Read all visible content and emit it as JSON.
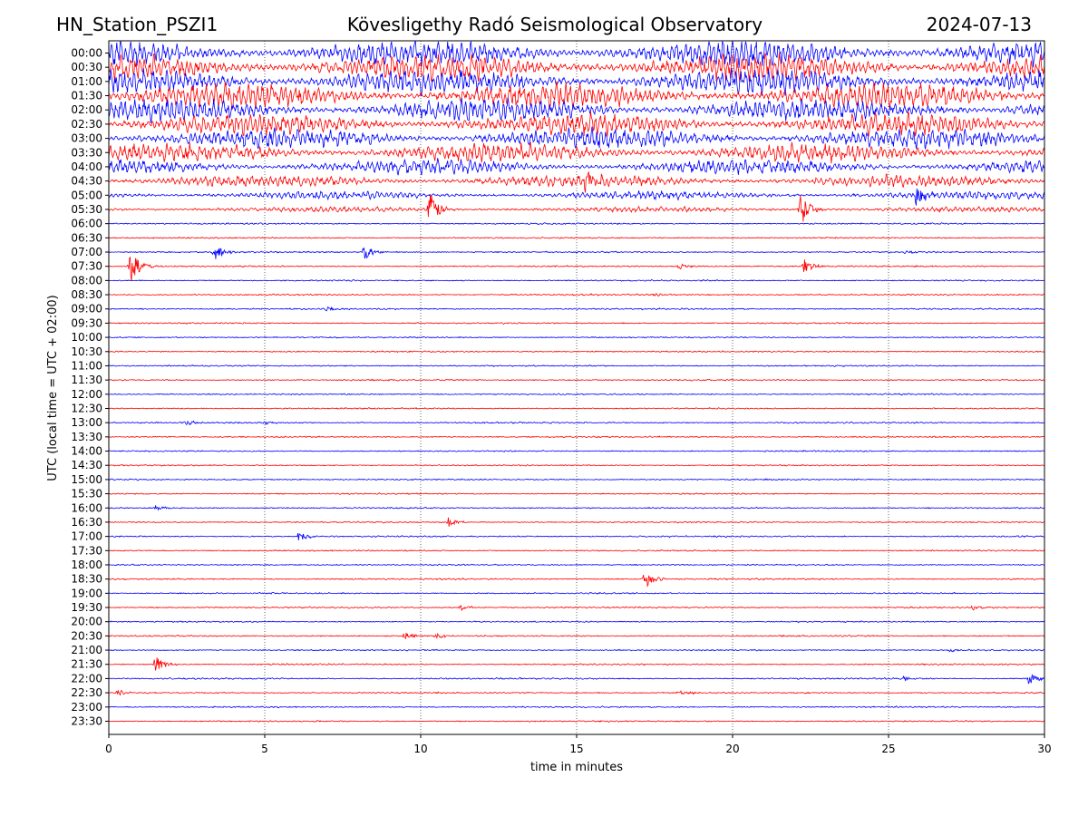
{
  "header": {
    "station": "HN_Station_PSZI1",
    "observatory": "Kövesligethy Radó Seismological Observatory",
    "date": "2024-07-13"
  },
  "chart_data": {
    "type": "line",
    "title": "Kövesligethy Radó Seismological Observatory",
    "xlabel": "time in minutes",
    "ylabel": "UTC (local time = UTC + 02:00)",
    "xlim": [
      0,
      30
    ],
    "x_ticks": [
      0,
      5,
      10,
      15,
      20,
      25,
      30
    ],
    "grid": "vertical dotted at x ticks",
    "colors": {
      "even_rows": "#0000ff",
      "odd_rows": "#ff0000"
    },
    "rows": [
      "00:00",
      "00:30",
      "01:00",
      "01:30",
      "02:00",
      "02:30",
      "03:00",
      "03:30",
      "04:00",
      "04:30",
      "05:00",
      "05:30",
      "06:00",
      "06:30",
      "07:00",
      "07:30",
      "08:00",
      "08:30",
      "09:00",
      "09:30",
      "10:00",
      "10:30",
      "11:00",
      "11:30",
      "12:00",
      "12:30",
      "13:00",
      "13:30",
      "14:00",
      "14:30",
      "15:00",
      "15:30",
      "16:00",
      "16:30",
      "17:00",
      "17:30",
      "18:00",
      "18:30",
      "19:00",
      "19:30",
      "20:00",
      "20:30",
      "21:00",
      "21:30",
      "22:00",
      "22:30",
      "23:00",
      "23:30"
    ],
    "noise_level": [
      1.0,
      1.0,
      0.95,
      0.95,
      0.85,
      0.8,
      0.75,
      0.7,
      0.55,
      0.45,
      0.3,
      0.2,
      0.05,
      0.04,
      0.04,
      0.04,
      0.04,
      0.05,
      0.05,
      0.04,
      0.04,
      0.04,
      0.04,
      0.04,
      0.04,
      0.04,
      0.05,
      0.04,
      0.04,
      0.04,
      0.04,
      0.04,
      0.04,
      0.04,
      0.05,
      0.04,
      0.04,
      0.05,
      0.04,
      0.05,
      0.04,
      0.04,
      0.04,
      0.05,
      0.05,
      0.04,
      0.04,
      0.04
    ],
    "events": [
      {
        "row": "04:30",
        "minute": 15.3,
        "amplitude": 0.6
      },
      {
        "row": "05:00",
        "minute": 25.9,
        "amplitude": 0.5
      },
      {
        "row": "05:30",
        "minute": 10.3,
        "amplitude": 0.9
      },
      {
        "row": "05:30",
        "minute": 22.2,
        "amplitude": 0.8
      },
      {
        "row": "07:00",
        "minute": 3.4,
        "amplitude": 0.45
      },
      {
        "row": "07:00",
        "minute": 8.2,
        "amplitude": 0.4
      },
      {
        "row": "07:00",
        "minute": 25.5,
        "amplitude": 0.12
      },
      {
        "row": "07:30",
        "minute": 0.7,
        "amplitude": 0.9
      },
      {
        "row": "07:30",
        "minute": 18.3,
        "amplitude": 0.2
      },
      {
        "row": "07:30",
        "minute": 22.3,
        "amplitude": 0.35
      },
      {
        "row": "08:30",
        "minute": 17.5,
        "amplitude": 0.1
      },
      {
        "row": "09:00",
        "minute": 7.0,
        "amplitude": 0.12
      },
      {
        "row": "13:00",
        "minute": 2.5,
        "amplitude": 0.15
      },
      {
        "row": "13:00",
        "minute": 5.0,
        "amplitude": 0.12
      },
      {
        "row": "16:00",
        "minute": 1.5,
        "amplitude": 0.15
      },
      {
        "row": "16:30",
        "minute": 10.9,
        "amplitude": 0.22
      },
      {
        "row": "17:00",
        "minute": 6.1,
        "amplitude": 0.25
      },
      {
        "row": "18:30",
        "minute": 17.2,
        "amplitude": 0.45
      },
      {
        "row": "19:30",
        "minute": 11.3,
        "amplitude": 0.18
      },
      {
        "row": "19:30",
        "minute": 27.7,
        "amplitude": 0.15
      },
      {
        "row": "20:30",
        "minute": 9.5,
        "amplitude": 0.22
      },
      {
        "row": "20:30",
        "minute": 10.5,
        "amplitude": 0.15
      },
      {
        "row": "21:00",
        "minute": 27.0,
        "amplitude": 0.1
      },
      {
        "row": "21:30",
        "minute": 1.5,
        "amplitude": 0.45
      },
      {
        "row": "22:00",
        "minute": 29.5,
        "amplitude": 0.3
      },
      {
        "row": "22:00",
        "minute": 25.5,
        "amplitude": 0.12
      },
      {
        "row": "22:30",
        "minute": 0.3,
        "amplitude": 0.15
      },
      {
        "row": "22:30",
        "minute": 18.3,
        "amplitude": 0.2
      }
    ]
  }
}
